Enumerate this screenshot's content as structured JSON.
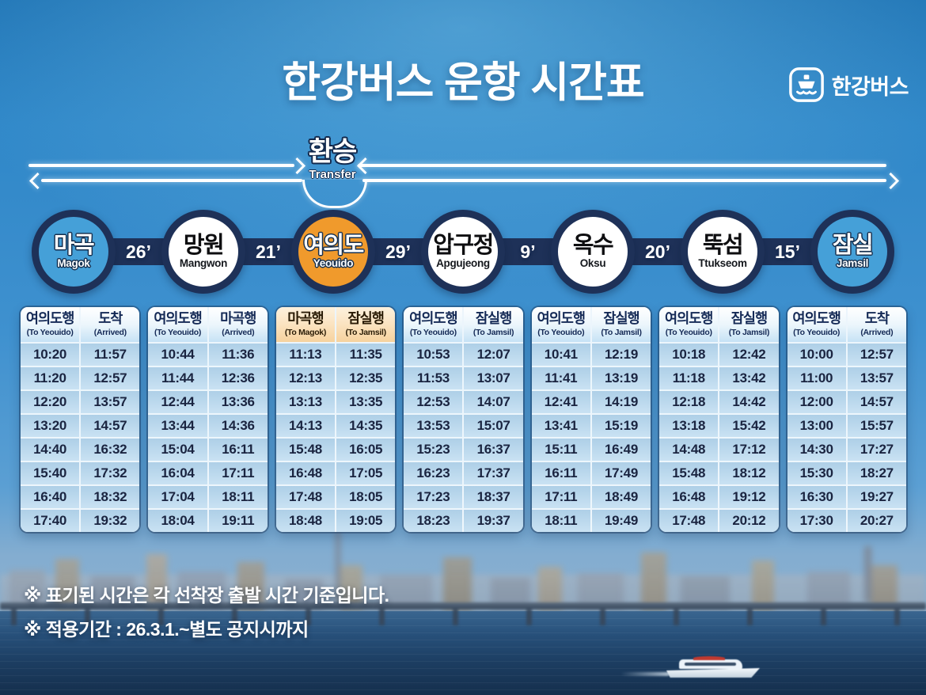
{
  "title": "한강버스 운항 시간표",
  "logo": {
    "text": "한강버스",
    "icon": "boat-icon"
  },
  "transfer": {
    "label_ko": "환승",
    "label_en": "Transfer"
  },
  "colors": {
    "navy": "#1e3158",
    "station_blue": "#45a0d8",
    "station_orange": "#f09a2c",
    "table_blue": "#b9d8ec"
  },
  "line": {
    "stations": [
      {
        "name_ko": "마곡",
        "name_en": "Magok",
        "style": "blue"
      },
      {
        "name_ko": "망원",
        "name_en": "Mangwon",
        "style": "white"
      },
      {
        "name_ko": "여의도",
        "name_en": "Yeouido",
        "style": "orange"
      },
      {
        "name_ko": "압구정",
        "name_en": "Apgujeong",
        "style": "white"
      },
      {
        "name_ko": "옥수",
        "name_en": "Oksu",
        "style": "white"
      },
      {
        "name_ko": "뚝섬",
        "name_en": "Ttukseom",
        "style": "white"
      },
      {
        "name_ko": "잠실",
        "name_en": "Jamsil",
        "style": "blue"
      }
    ],
    "intervals": [
      "26’",
      "21’",
      "29’",
      "9’",
      "20’",
      "15’"
    ]
  },
  "timetables": [
    {
      "station": "Magok",
      "header_style": "blue",
      "columns": [
        {
          "ko": "여의도행",
          "en": "(To Yeouido)"
        },
        {
          "ko": "도착",
          "en": "(Arrived)"
        }
      ],
      "rows": [
        [
          "10:20",
          "11:57"
        ],
        [
          "11:20",
          "12:57"
        ],
        [
          "12:20",
          "13:57"
        ],
        [
          "13:20",
          "14:57"
        ],
        [
          "14:40",
          "16:32"
        ],
        [
          "15:40",
          "17:32"
        ],
        [
          "16:40",
          "18:32"
        ],
        [
          "17:40",
          "19:32"
        ]
      ]
    },
    {
      "station": "Mangwon",
      "header_style": "blue",
      "columns": [
        {
          "ko": "여의도행",
          "en": "(To Yeouido)"
        },
        {
          "ko": "마곡행",
          "en": "(Arrived)"
        }
      ],
      "rows": [
        [
          "10:44",
          "11:36"
        ],
        [
          "11:44",
          "12:36"
        ],
        [
          "12:44",
          "13:36"
        ],
        [
          "13:44",
          "14:36"
        ],
        [
          "15:04",
          "16:11"
        ],
        [
          "16:04",
          "17:11"
        ],
        [
          "17:04",
          "18:11"
        ],
        [
          "18:04",
          "19:11"
        ]
      ]
    },
    {
      "station": "Yeouido",
      "header_style": "orange",
      "columns": [
        {
          "ko": "마곡행",
          "en": "(To Magok)"
        },
        {
          "ko": "잠실행",
          "en": "(To Jamsil)"
        }
      ],
      "rows": [
        [
          "11:13",
          "11:35"
        ],
        [
          "12:13",
          "12:35"
        ],
        [
          "13:13",
          "13:35"
        ],
        [
          "14:13",
          "14:35"
        ],
        [
          "15:48",
          "16:05"
        ],
        [
          "16:48",
          "17:05"
        ],
        [
          "17:48",
          "18:05"
        ],
        [
          "18:48",
          "19:05"
        ]
      ]
    },
    {
      "station": "Apgujeong",
      "header_style": "blue",
      "columns": [
        {
          "ko": "여의도행",
          "en": "(To Yeouido)"
        },
        {
          "ko": "잠실행",
          "en": "(To Jamsil)"
        }
      ],
      "rows": [
        [
          "10:53",
          "12:07"
        ],
        [
          "11:53",
          "13:07"
        ],
        [
          "12:53",
          "14:07"
        ],
        [
          "13:53",
          "15:07"
        ],
        [
          "15:23",
          "16:37"
        ],
        [
          "16:23",
          "17:37"
        ],
        [
          "17:23",
          "18:37"
        ],
        [
          "18:23",
          "19:37"
        ]
      ]
    },
    {
      "station": "Oksu",
      "header_style": "blue",
      "columns": [
        {
          "ko": "여의도행",
          "en": "(To Yeouido)"
        },
        {
          "ko": "잠실행",
          "en": "(To Jamsil)"
        }
      ],
      "rows": [
        [
          "10:41",
          "12:19"
        ],
        [
          "11:41",
          "13:19"
        ],
        [
          "12:41",
          "14:19"
        ],
        [
          "13:41",
          "15:19"
        ],
        [
          "15:11",
          "16:49"
        ],
        [
          "16:11",
          "17:49"
        ],
        [
          "17:11",
          "18:49"
        ],
        [
          "18:11",
          "19:49"
        ]
      ]
    },
    {
      "station": "Ttukseom",
      "header_style": "blue",
      "columns": [
        {
          "ko": "여의도행",
          "en": "(To Yeouido)"
        },
        {
          "ko": "잠실행",
          "en": "(To Jamsil)"
        }
      ],
      "rows": [
        [
          "10:18",
          "12:42"
        ],
        [
          "11:18",
          "13:42"
        ],
        [
          "12:18",
          "14:42"
        ],
        [
          "13:18",
          "15:42"
        ],
        [
          "14:48",
          "17:12"
        ],
        [
          "15:48",
          "18:12"
        ],
        [
          "16:48",
          "19:12"
        ],
        [
          "17:48",
          "20:12"
        ]
      ]
    },
    {
      "station": "Jamsil",
      "header_style": "blue",
      "columns": [
        {
          "ko": "여의도행",
          "en": "(To Yeouido)"
        },
        {
          "ko": "도착",
          "en": "(Arrived)"
        }
      ],
      "rows": [
        [
          "10:00",
          "12:57"
        ],
        [
          "11:00",
          "13:57"
        ],
        [
          "12:00",
          "14:57"
        ],
        [
          "13:00",
          "15:57"
        ],
        [
          "14:30",
          "17:27"
        ],
        [
          "15:30",
          "18:27"
        ],
        [
          "16:30",
          "19:27"
        ],
        [
          "17:30",
          "20:27"
        ]
      ]
    }
  ],
  "notes": [
    "※ 표기된 시간은 각 선착장 출발 시간 기준입니다.",
    "※ 적용기간 : 26.3.1.~별도 공지시까지"
  ]
}
